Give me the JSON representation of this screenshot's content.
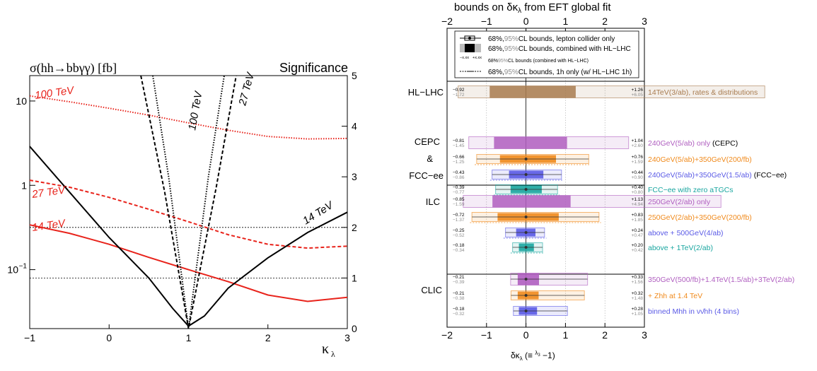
{
  "colors": {
    "red": "#e8231b",
    "black": "#000000",
    "brown": "#a87b4f",
    "purple": "#b05fc0",
    "orange": "#f08a1c",
    "blue": "#5a5ae6",
    "teal": "#1aa6a0",
    "grey": "#8c8c8c"
  },
  "left_panel": {
    "title_left": "σ(hh→bbγγ) [fb]",
    "title_right": "Significance",
    "xlabel": "κ",
    "xlabel_sub": "λ",
    "x_ticks": [
      "−1",
      "0",
      "1",
      "2",
      "3"
    ],
    "y_left_ticks": [
      "10",
      "1",
      "10",
      "−1"
    ],
    "y_right_ticks": [
      "0",
      "1",
      "2",
      "3",
      "4",
      "5"
    ],
    "curve_labels": {
      "sigma_100": "100 TeV",
      "sigma_27": "27 TeV",
      "sigma_14": "14 TeV",
      "sig_100": "100 TeV",
      "sig_27": "27 TeV",
      "sig_14": "14 TeV"
    }
  },
  "right_panel": {
    "top_title": "bounds on δκ",
    "top_title_sub": "λ",
    "top_title_rest": " from EFT global fit",
    "x_ticks": [
      "−2",
      "−1",
      "0",
      "1",
      "2",
      "3"
    ],
    "xlabel": "δκλ (≡ λ3/λ3SM −1)",
    "legend": [
      {
        "pre": "68%,",
        "grey": "95%",
        "post": "CL bounds, lepton collider only"
      },
      {
        "pre": "68%,",
        "grey": "95%",
        "post": "CL bounds, combined with HL−LHC"
      },
      {
        "pre": "68%",
        "grey": "95%",
        "post": "CL bounds (combined with HL−LHC)"
      },
      {
        "pre": "68%,",
        "grey": "95%",
        "post": "CL bounds, 1h only (w/ HL−LHC 1h)"
      }
    ],
    "legend_sample_neg": "−x.xx",
    "legend_sample_pos": "+x.xx",
    "groups": [
      {
        "label": "HL−LHC"
      },
      {
        "label": "CEPC\n&\nFCC−ee"
      },
      {
        "label": "ILC"
      },
      {
        "label": "CLIC"
      }
    ]
  },
  "chart_data": [
    {
      "type": "line",
      "title": "σ(hh→bbγγ) [fb]",
      "xlabel": "κλ",
      "ylabel_left": "σ(hh→bbγγ) [fb]",
      "ylabel_right": "Significance",
      "xlim": [
        -1,
        3
      ],
      "ylim_left_log": [
        0.02,
        20
      ],
      "ylim_right": [
        0,
        5
      ],
      "series": [
        {
          "name": "100 TeV",
          "axis": "left",
          "style": "dotted",
          "color": "red",
          "x": [
            -1,
            -0.5,
            0,
            0.5,
            1,
            1.5,
            2,
            2.5,
            3
          ],
          "y": [
            11.5,
            9.8,
            8.2,
            6.8,
            5.5,
            4.5,
            3.8,
            3.55,
            3.6
          ]
        },
        {
          "name": "27 TeV",
          "axis": "left",
          "style": "dashed",
          "color": "red",
          "x": [
            -1,
            -0.5,
            0,
            0.5,
            1,
            1.5,
            2,
            2.5,
            3
          ],
          "y": [
            1.15,
            0.95,
            0.72,
            0.52,
            0.37,
            0.26,
            0.2,
            0.18,
            0.19
          ]
        },
        {
          "name": "14 TeV",
          "axis": "left",
          "style": "solid",
          "color": "red",
          "x": [
            -1,
            -0.5,
            0,
            0.5,
            1,
            1.5,
            2,
            2.5,
            3
          ],
          "y": [
            0.34,
            0.27,
            0.2,
            0.14,
            0.1,
            0.072,
            0.05,
            0.042,
            0.047
          ]
        },
        {
          "name": "100 TeV",
          "axis": "right",
          "style": "dotted",
          "color": "black",
          "x": [
            0.55,
            0.75,
            0.9,
            1.0,
            1.1,
            1.25,
            1.45
          ],
          "y": [
            5,
            3.0,
            1.2,
            0.0,
            1.2,
            3.0,
            5
          ]
        },
        {
          "name": "27 TeV",
          "axis": "right",
          "style": "dashed",
          "color": "black",
          "x": [
            0.4,
            0.7,
            0.9,
            1.0,
            1.15,
            1.35,
            1.6
          ],
          "y": [
            5,
            2.7,
            0.9,
            0.0,
            1.2,
            2.8,
            5
          ]
        },
        {
          "name": "14 TeV",
          "axis": "right",
          "style": "solid",
          "color": "black",
          "x": [
            -1,
            -0.5,
            0,
            0.5,
            0.8,
            1.0,
            1.2,
            1.5,
            2,
            2.5,
            3
          ],
          "y": [
            3.6,
            2.7,
            1.8,
            1.0,
            0.4,
            0.05,
            0.25,
            0.8,
            1.4,
            1.9,
            2.3
          ]
        }
      ],
      "hlines_right": [
        1,
        2
      ]
    },
    {
      "type": "bar",
      "title": "bounds on δκλ from EFT global fit",
      "xlabel": "δκλ",
      "xlim": [
        -2,
        3
      ],
      "rows": [
        {
          "group": "HL−LHC",
          "label": "14TeV(3/ab), rates & distributions",
          "color": "brown",
          "lo68": -0.92,
          "hi68": 1.26,
          "lo95": -1.72,
          "hi95": 6.05,
          "lo68_text": "−0.92",
          "lo95_text": "−1.72",
          "hi68_text": "+1.26",
          "hi95_text": "+6.05"
        },
        {
          "group": "CEPC",
          "label": "240GeV(5/ab) only",
          "label_suffix": " (CEPC)",
          "color": "purple",
          "lo68": -0.81,
          "hi68": 1.04,
          "lo95": -1.45,
          "hi95": 2.6,
          "lo68_text": "−0.81",
          "lo95_text": "−1.45",
          "hi68_text": "+1.04",
          "hi95_text": "+2.60"
        },
        {
          "group": "CEPC",
          "label": "240GeV(5/ab)+350GeV(200/fb)",
          "label_suffix": "",
          "color": "orange",
          "lo68": -0.66,
          "hi68": 0.76,
          "lo95": -1.25,
          "hi95": 1.59,
          "lo68_text": "−0.66",
          "lo95_text": "−1.25",
          "hi68_text": "+0.76",
          "hi95_text": "+1.59"
        },
        {
          "group": "FCC−ee",
          "label": "240GeV(5/ab)+350GeV(1.5/ab)",
          "label_suffix": " (FCC−ee)",
          "color": "blue",
          "lo68": -0.43,
          "hi68": 0.44,
          "lo95": -0.86,
          "hi95": 0.9,
          "lo68_text": "−0.43",
          "lo95_text": "−0.86",
          "hi68_text": "+0.44",
          "hi95_text": "+0.90"
        },
        {
          "group": "FCC−ee",
          "label": "FCC−ee with zero aTGCs",
          "label_suffix": "",
          "color": "teal",
          "lo68": -0.39,
          "hi68": 0.4,
          "lo95": -0.77,
          "hi95": 0.8,
          "lo68_text": "−0.39",
          "lo95_text": "−0.77",
          "hi68_text": "+0.40",
          "hi95_text": "+0.80"
        },
        {
          "group": "ILC",
          "label": "250GeV(2/ab) only",
          "label_suffix": "",
          "color": "purple",
          "lo68": -0.85,
          "hi68": 1.13,
          "lo95": -1.59,
          "hi95": 4.94,
          "lo68_text": "−0.85",
          "lo95_text": "−1.59",
          "hi68_text": "+1.13",
          "hi95_text": "+4.94"
        },
        {
          "group": "ILC",
          "label": "250GeV(2/ab)+350GeV(200/fb)",
          "label_suffix": "",
          "color": "orange",
          "lo68": -0.72,
          "hi68": 0.83,
          "lo95": -1.37,
          "hi95": 1.85,
          "lo68_text": "−0.72",
          "lo95_text": "−1.37",
          "hi68_text": "+0.83",
          "hi95_text": "+1.85"
        },
        {
          "group": "ILC",
          "label": "above + 500GeV(4/ab)",
          "label_suffix": "",
          "color": "blue",
          "lo68": -0.25,
          "hi68": 0.24,
          "lo95": -0.52,
          "hi95": 0.47,
          "lo68_text": "−0.25",
          "lo95_text": "−0.52",
          "hi68_text": "+0.24",
          "hi95_text": "+0.47"
        },
        {
          "group": "ILC",
          "label": "above + 1TeV(2/ab)",
          "label_suffix": "",
          "color": "teal",
          "lo68": -0.18,
          "hi68": 0.2,
          "lo95": -0.34,
          "hi95": 0.42,
          "lo68_text": "−0.18",
          "lo95_text": "−0.34",
          "hi68_text": "+0.20",
          "hi95_text": "+0.42"
        },
        {
          "group": "CLIC",
          "label": "350GeV(500/fb)+1.4TeV(1.5/ab)+3TeV(2/ab)",
          "label_suffix": "",
          "color": "purple",
          "lo68": -0.21,
          "hi68": 0.33,
          "lo95": -0.39,
          "hi95": 1.56,
          "lo68_text": "−0.21",
          "lo95_text": "−0.39",
          "hi68_text": "+0.33",
          "hi95_text": "+1.56"
        },
        {
          "group": "CLIC",
          "label": "+ Zhh at 1.4 TeV",
          "label_suffix": "",
          "color": "orange",
          "lo68": -0.21,
          "hi68": 0.32,
          "lo95": -0.38,
          "hi95": 1.48,
          "lo68_text": "−0.21",
          "lo95_text": "−0.38",
          "hi68_text": "+0.32",
          "hi95_text": "+1.48"
        },
        {
          "group": "CLIC",
          "label": "binned Mhh in νν̄hh (4 bins)",
          "label_suffix": "",
          "color": "blue",
          "lo68": -0.18,
          "hi68": 0.28,
          "lo95": -0.32,
          "hi95": 1.05,
          "lo68_text": "−0.18",
          "lo95_text": "−0.32",
          "hi68_text": "+0.28",
          "hi95_text": "+1.05"
        }
      ]
    }
  ]
}
